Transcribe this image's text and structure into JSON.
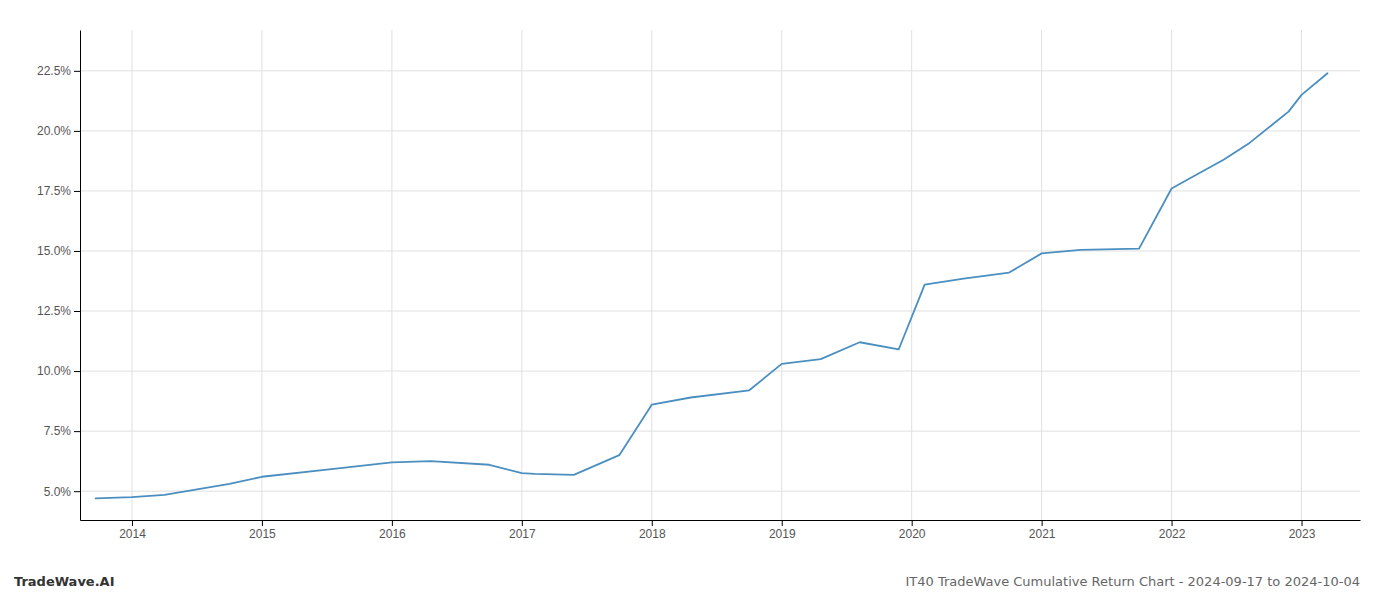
{
  "chart_data": {
    "type": "line",
    "title": "IT40 TradeWave Cumulative Return Chart - 2024-09-17 to 2024-10-04",
    "annotations": [
      "TradeWave.AI"
    ],
    "x": [
      2013.72,
      2014.0,
      2014.25,
      2014.75,
      2015.0,
      2015.5,
      2016.0,
      2016.3,
      2016.75,
      2017.0,
      2017.1,
      2017.4,
      2017.75,
      2018.0,
      2018.3,
      2018.75,
      2019.0,
      2019.3,
      2019.6,
      2019.9,
      2020.1,
      2020.4,
      2020.75,
      2021.0,
      2021.3,
      2021.75,
      2022.0,
      2022.1,
      2022.4,
      2022.6,
      2022.9,
      2023.0,
      2023.2
    ],
    "values": [
      4.7,
      4.75,
      4.85,
      5.3,
      5.6,
      5.9,
      6.2,
      6.25,
      6.1,
      5.75,
      5.72,
      5.68,
      6.5,
      8.6,
      8.9,
      9.2,
      10.3,
      10.5,
      11.2,
      10.9,
      13.6,
      13.85,
      14.1,
      14.9,
      15.05,
      15.1,
      17.6,
      17.9,
      18.8,
      19.5,
      20.8,
      21.5,
      22.4
    ],
    "color": "#4a8fc0",
    "xlim": [
      2013.6,
      2023.45
    ],
    "ylim": [
      3.8,
      24.2
    ],
    "xticks": [
      2014,
      2015,
      2016,
      2017,
      2018,
      2019,
      2020,
      2021,
      2022,
      2023
    ],
    "yticks": [
      {
        "value": 5.0,
        "label": "5.0%"
      },
      {
        "value": 7.5,
        "label": "7.5%"
      },
      {
        "value": 10.0,
        "label": "10.0%"
      },
      {
        "value": 12.5,
        "label": "12.5%"
      },
      {
        "value": 15.0,
        "label": "15.0%"
      },
      {
        "value": 17.5,
        "label": "17.5%"
      },
      {
        "value": 20.0,
        "label": "20.0%"
      },
      {
        "value": 22.5,
        "label": "22.5%"
      }
    ],
    "grid": true
  }
}
